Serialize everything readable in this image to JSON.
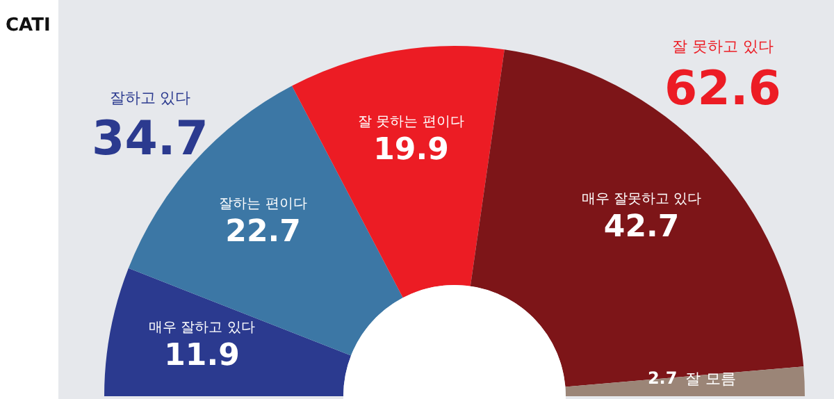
{
  "chart_data": {
    "type": "donut",
    "title": "CATI",
    "categories": [
      "매우 잘하고 있다",
      "잘하는 편이다",
      "잘 못하는 편이다",
      "매우 잘못하고 있다",
      "잘 모름"
    ],
    "values": [
      11.9,
      22.7,
      19.9,
      42.7,
      2.7
    ],
    "colors": [
      "#2b3a8f",
      "#3c77a5",
      "#ec1c24",
      "#7d1518",
      "#9b8577"
    ],
    "data_labels": true,
    "annotations": [
      "잘하고 있다",
      "34.7",
      "잘 못하고 있다",
      "62.6"
    ]
  }
}
